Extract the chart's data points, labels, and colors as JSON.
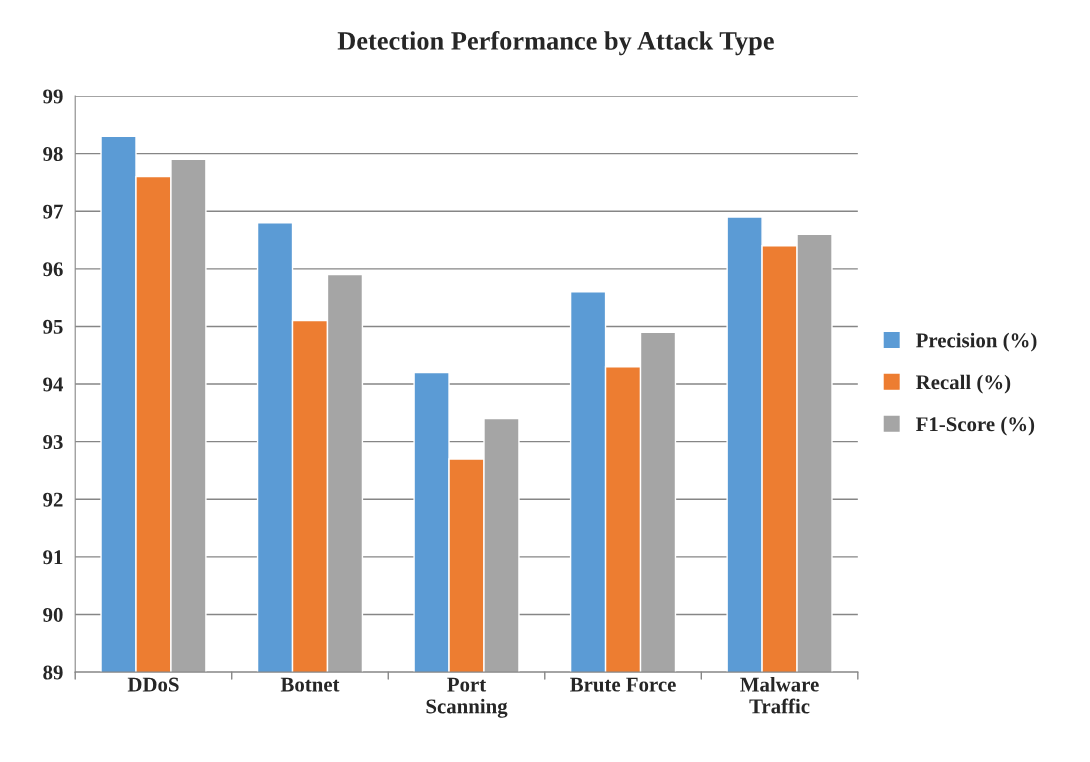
{
  "chart_data": {
    "type": "bar",
    "title": "Detection Performance by Attack Type",
    "categories": [
      "DDoS",
      "Botnet",
      "Port\nScanning",
      "Brute Force",
      "Malware\nTraffic"
    ],
    "series": [
      {
        "name": "Precision (%)",
        "color": "#5b9bd5",
        "values": [
          98.3,
          96.8,
          94.2,
          95.6,
          96.9
        ]
      },
      {
        "name": "Recall (%)",
        "color": "#ed7d31",
        "values": [
          97.6,
          95.1,
          92.7,
          94.3,
          96.4
        ]
      },
      {
        "name": "F1-Score (%)",
        "color": "#a5a5a5",
        "values": [
          97.9,
          95.9,
          93.4,
          94.9,
          96.6
        ]
      }
    ],
    "ylim": [
      89,
      99
    ],
    "yticks": [
      89,
      90,
      91,
      92,
      93,
      94,
      95,
      96,
      97,
      98,
      99
    ],
    "grid": "y",
    "legend": "right"
  }
}
